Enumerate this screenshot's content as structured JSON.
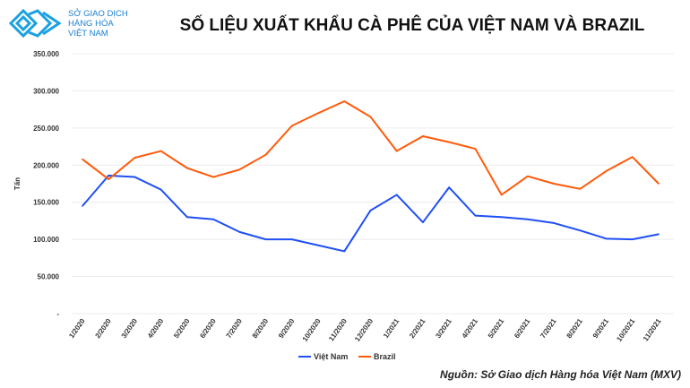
{
  "logo": {
    "line1": "SỞ GIAO DỊCH",
    "line2": "HÀNG HÓA",
    "line3": "VIỆT NAM"
  },
  "source": "Nguồn: Sở Giao dịch Hàng hóa Việt Nam (MXV)",
  "chart_data": {
    "type": "line",
    "title": "SỐ LIỆU XUẤT KHẨU CÀ PHÊ CỦA VIỆT NAM VÀ BRAZIL",
    "xlabel": "",
    "ylabel": "Tấn",
    "ylim": [
      0,
      350000
    ],
    "yticks": [
      0,
      50000,
      100000,
      150000,
      200000,
      250000,
      300000,
      350000
    ],
    "ytick_labels": [
      "-",
      "50.000",
      "100.000",
      "150.000",
      "200.000",
      "250.000",
      "300.000",
      "350.000"
    ],
    "categories": [
      "1/2020",
      "2/2020",
      "3/2020",
      "4/2020",
      "5/2020",
      "6/2020",
      "7/2020",
      "8/2020",
      "9/2020",
      "10/2020",
      "11/2020",
      "12/2020",
      "1/2021",
      "2/2021",
      "3/2021",
      "4/2021",
      "5/2021",
      "6/2021",
      "7/2021",
      "8/2021",
      "9/2021",
      "10/2021",
      "11/2021"
    ],
    "series": [
      {
        "name": "Việt Nam",
        "color": "#1f4ff5",
        "values": [
          145000,
          186000,
          184000,
          167000,
          130000,
          127000,
          110000,
          100000,
          100000,
          92000,
          84000,
          139000,
          160000,
          123000,
          170000,
          132000,
          130000,
          127000,
          122000,
          112000,
          101000,
          100000,
          107000
        ]
      },
      {
        "name": "Brazil",
        "color": "#ff5a0a",
        "values": [
          208000,
          181000,
          210000,
          219000,
          196000,
          184000,
          194000,
          214000,
          253000,
          270000,
          286000,
          265000,
          219000,
          239000,
          231000,
          222000,
          160000,
          185000,
          175000,
          168000,
          192000,
          211000,
          175000
        ]
      }
    ],
    "grid": true,
    "legend": "bottom"
  }
}
